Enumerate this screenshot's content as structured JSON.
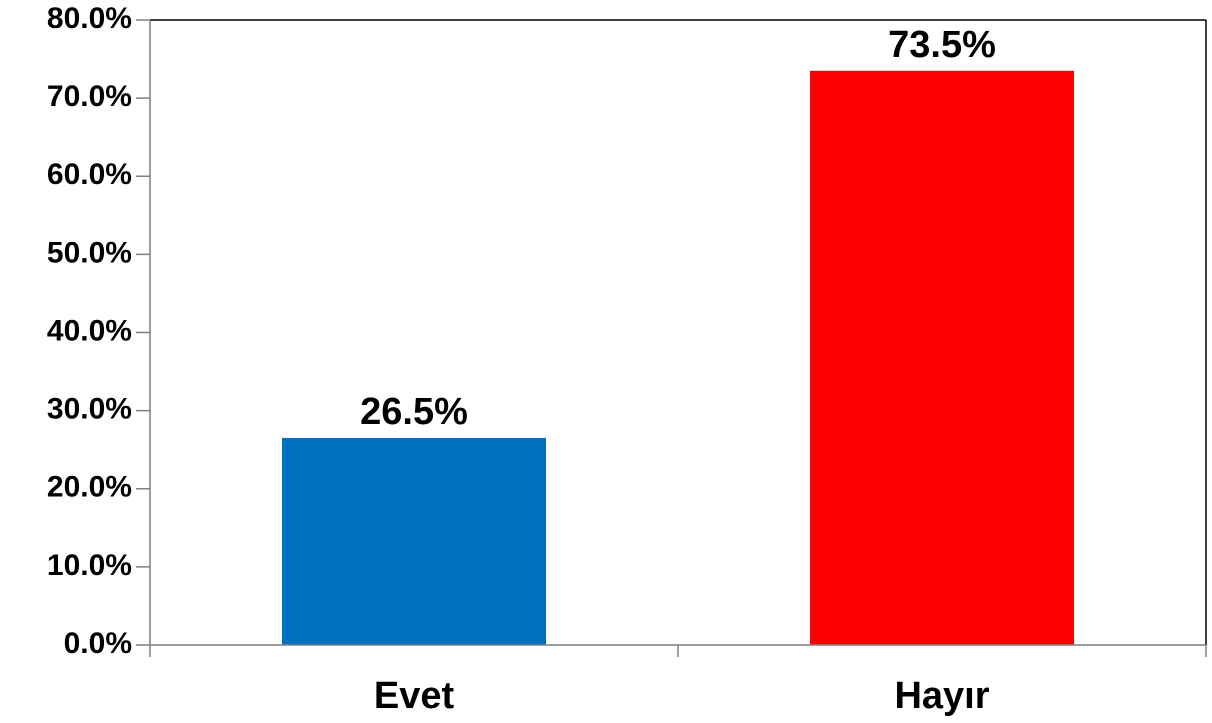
{
  "chart_data": {
    "type": "bar",
    "categories": [
      "Evet",
      "Hayır"
    ],
    "values": [
      26.5,
      73.5
    ],
    "data_labels": [
      "26.5%",
      "73.5%"
    ],
    "bar_colors": [
      "#0070C0",
      "#FF0000"
    ],
    "ylim": [
      0,
      80
    ],
    "yticks": [
      0,
      10,
      20,
      30,
      40,
      50,
      60,
      70,
      80
    ],
    "ytick_labels": [
      "0.0%",
      "10.0%",
      "20.0%",
      "30.0%",
      "40.0%",
      "50.0%",
      "60.0%",
      "70.0%",
      "80.0%"
    ],
    "grid": false,
    "legend": "none",
    "frame_color": "#000000",
    "axis_color": "#7F7F7F"
  }
}
